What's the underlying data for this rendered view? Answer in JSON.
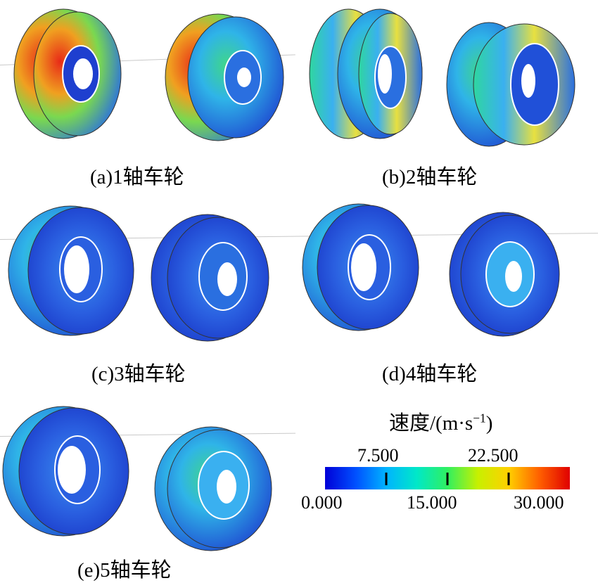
{
  "captions": {
    "a": "(a)1轴车轮",
    "b": "(b)2轴车轮",
    "c": "(c)3轴车轮",
    "d": "(d)4轴车轮",
    "e": "(e)5轴车轮"
  },
  "legend": {
    "title_main": "速度/(m·s",
    "title_exp": "−1",
    "title_close": ")",
    "min": 0.0,
    "max": 30.0,
    "labels_top": [
      "7.500",
      "22.500"
    ],
    "labels_bottom": [
      "0.000",
      "15.000",
      "30.000"
    ],
    "colormap": [
      "#0000d8",
      "#0050ff",
      "#00b4ff",
      "#00e8c8",
      "#30f060",
      "#c8f000",
      "#ffd000",
      "#ff6000",
      "#e00000"
    ]
  },
  "colors": {
    "low": "#1a3bd6",
    "cyan": "#2fc4e8",
    "green": "#3fd66a",
    "yellow": "#e8e83a",
    "red": "#e83020"
  }
}
